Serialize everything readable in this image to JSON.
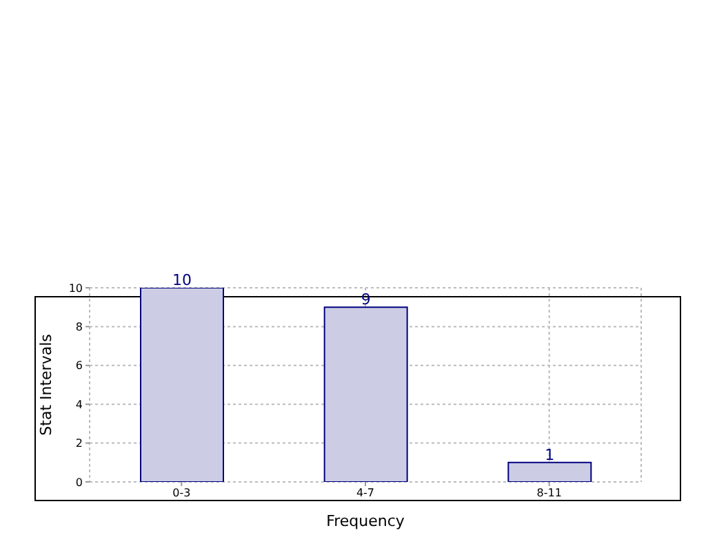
{
  "chart_data": {
    "type": "bar",
    "xlabel": "Frequency",
    "ylabel": "Stat Intervals",
    "categories": [
      "0-3",
      "4-7",
      "8-11"
    ],
    "values": [
      10,
      9,
      1
    ],
    "color": "#ccccE4",
    "ylim": [
      0,
      10
    ],
    "yticks": [
      0,
      2,
      4,
      6,
      8,
      10
    ],
    "grid": true,
    "data_labels": true
  }
}
